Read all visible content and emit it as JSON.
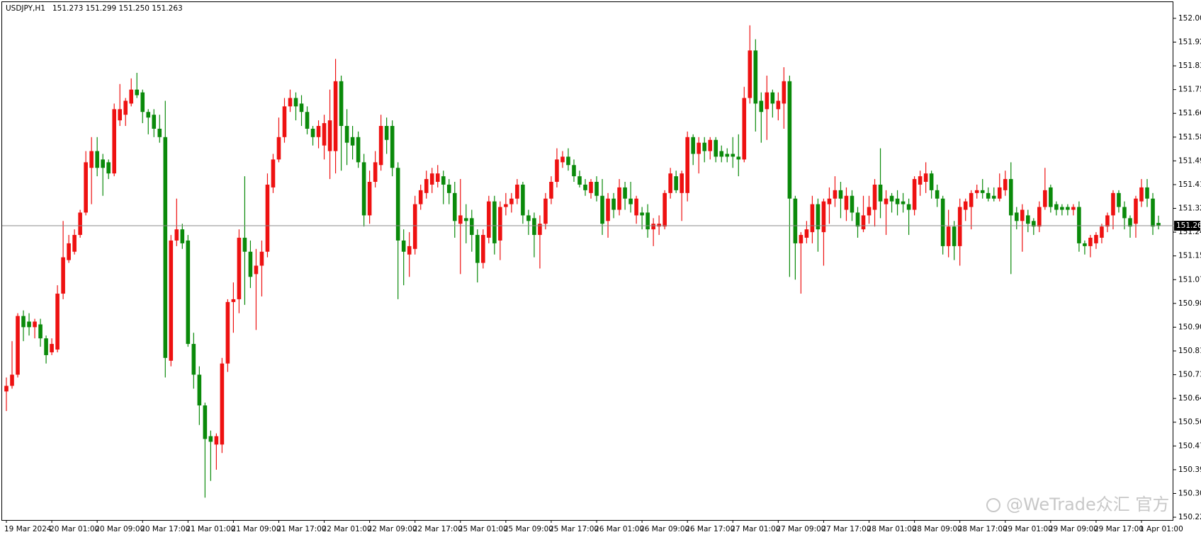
{
  "chart_data": {
    "type": "candlestick",
    "symbol": "USDJPY,H1",
    "header_ohlc": "151.273 151.299 151.250 151.263",
    "watermark": "@WeTrade众汇 官方",
    "up_color": "#ee1111",
    "down_color": "#0a8a0a",
    "ylim": [
      150.21,
      152.063
    ],
    "yticks": [
      {
        "value": 150.22,
        "label": "150.220"
      },
      150.305,
      {
        "value": 150.39,
        "label": "150.390"
      },
      150.475,
      {
        "value": 150.56,
        "label": "150.560"
      },
      150.645,
      {
        "value": 150.73,
        "label": "150.730"
      },
      150.815,
      {
        "value": 150.9,
        "label": "150.900"
      },
      150.985,
      {
        "value": 151.07,
        "label": "151.070"
      },
      151.155,
      {
        "value": 151.24,
        "label": "151.240"
      },
      151.325,
      {
        "value": 151.41,
        "label": "151.410"
      },
      151.495,
      {
        "value": 151.58,
        "label": "151.580"
      },
      151.665,
      {
        "value": 151.75,
        "label": "151.750"
      },
      151.835,
      {
        "value": 151.92,
        "label": "151.920"
      },
      152.005
    ],
    "xticks": [
      {
        "value": 0,
        "label": "19 Mar 2024"
      },
      {
        "value": 8,
        "label": "20 Mar 01:00"
      },
      {
        "value": 16,
        "label": "20 Mar 09:00"
      },
      {
        "value": 24,
        "label": "20 Mar 17:00"
      },
      {
        "value": 32,
        "label": "21 Mar 01:00"
      },
      {
        "value": 40,
        "label": "21 Mar 09:00"
      },
      {
        "value": 48,
        "label": "21 Mar 17:00"
      },
      {
        "value": 56,
        "label": "22 Mar 01:00"
      },
      {
        "value": 64,
        "label": "22 Mar 09:00"
      },
      {
        "value": 72,
        "label": "22 Mar 17:00"
      },
      {
        "value": 80,
        "label": "25 Mar 01:00"
      },
      {
        "value": 88,
        "label": "25 Mar 09:00"
      },
      {
        "value": 96,
        "label": "25 Mar 17:00"
      },
      {
        "value": 104,
        "label": "26 Mar 01:00"
      },
      {
        "value": 112,
        "label": "26 Mar 09:00"
      },
      {
        "value": 120,
        "label": "26 Mar 17:00"
      },
      {
        "value": 128,
        "label": "27 Mar 01:00"
      },
      {
        "value": 136,
        "label": "27 Mar 09:00"
      },
      {
        "value": 144,
        "label": "27 Mar 17:00"
      },
      {
        "value": 152,
        "label": "28 Mar 01:00"
      },
      {
        "value": 160,
        "label": "28 Mar 09:00"
      },
      {
        "value": 168,
        "label": "28 Mar 17:00"
      },
      {
        "value": 176,
        "label": "29 Mar 01:00"
      },
      {
        "value": 184,
        "label": "29 Mar 09:00"
      },
      {
        "value": 192,
        "label": "29 Mar 17:00"
      },
      {
        "value": 200,
        "label": "1 Apr 01:00"
      }
    ],
    "price_line": 151.263,
    "open": [
      150.67,
      150.69,
      150.73,
      150.94,
      150.92,
      150.9,
      150.91,
      150.86,
      150.81,
      150.82,
      151.02,
      151.14,
      151.17,
      151.23,
      151.31,
      151.47,
      151.53,
      151.5,
      151.49,
      151.45,
      151.64,
      151.66,
      151.7,
      151.75,
      151.74,
      151.67,
      151.66,
      151.61,
      151.58,
      150.78,
      151.21,
      151.25,
      151.21,
      150.84,
      150.73,
      150.62,
      150.51,
      150.48,
      150.48,
      150.77,
      150.99,
      151.0,
      151.22,
      151.17,
      151.09,
      151.12,
      151.17,
      151.4,
      151.5,
      151.58,
      151.69,
      151.72,
      151.7,
      151.67,
      151.61,
      151.58,
      151.55,
      151.53,
      151.53,
      151.78,
      151.62,
      151.58,
      151.58,
      151.49,
      151.3,
      151.42,
      151.48,
      151.62,
      151.62,
      151.47,
      151.21,
      151.16,
      151.18,
      151.34,
      151.38,
      151.41,
      151.42,
      151.44,
      151.41,
      151.38,
      151.27,
      151.29,
      151.29,
      151.23,
      151.13,
      151.22,
      151.35,
      151.21,
      151.33,
      151.34,
      151.36,
      151.41,
      151.3,
      151.29,
      151.23,
      151.27,
      151.36,
      151.42,
      151.49,
      151.51,
      151.48,
      151.44,
      151.41,
      151.38,
      151.42,
      151.37,
      151.28,
      151.36,
      151.32,
      151.4,
      151.36,
      151.3,
      151.31,
      151.31,
      151.25,
      151.26,
      151.26,
      151.38,
      151.44,
      151.38,
      151.38,
      151.58,
      151.52,
      151.56,
      151.53,
      151.57,
      151.53,
      151.52,
      151.52,
      151.51,
      151.5,
      151.72,
      151.89,
      151.71,
      151.68,
      151.74,
      151.68,
      151.7,
      151.78,
      151.36,
      151.2,
      151.22,
      151.24,
      151.34,
      151.24,
      151.34,
      151.36,
      151.39,
      151.32,
      151.37,
      151.31,
      151.25,
      151.3,
      151.32,
      151.41,
      151.34,
      151.37,
      151.36,
      151.35,
      151.34,
      151.32,
      151.41,
      151.42,
      151.45,
      151.39,
      151.36,
      151.19,
      151.26,
      151.19,
      151.32,
      151.33,
      151.38,
      151.39,
      151.38,
      151.37,
      151.36,
      151.39,
      151.43,
      151.31,
      151.28,
      151.3,
      151.28,
      151.26,
      151.33,
      151.4,
      151.34,
      151.33,
      151.33,
      151.32,
      151.33,
      151.2,
      151.19,
      151.2,
      151.22,
      151.26,
      151.3,
      151.38,
      151.33,
      151.29,
      151.27,
      151.35,
      151.4,
      151.36,
      151.273
    ],
    "high": [
      150.72,
      150.85,
      150.95,
      150.96,
      150.95,
      150.93,
      150.93,
      150.87,
      150.86,
      151.05,
      151.28,
      151.23,
      151.25,
      151.32,
      151.53,
      151.58,
      151.58,
      151.52,
      151.5,
      151.7,
      151.77,
      151.72,
      151.79,
      151.81,
      151.75,
      151.68,
      151.68,
      151.66,
      151.71,
      151.23,
      151.36,
      151.27,
      151.23,
      150.88,
      150.76,
      150.63,
      150.53,
      150.52,
      150.79,
      151.0,
      151.06,
      151.25,
      151.44,
      151.21,
      151.18,
      151.21,
      151.45,
      151.52,
      151.65,
      151.72,
      151.75,
      151.74,
      151.73,
      151.69,
      151.62,
      151.64,
      151.66,
      151.75,
      151.86,
      151.8,
      151.68,
      151.62,
      151.6,
      151.52,
      151.46,
      151.53,
      151.66,
      151.65,
      151.64,
      151.49,
      151.25,
      151.24,
      151.37,
      151.41,
      151.46,
      151.47,
      151.48,
      151.46,
      151.43,
      151.42,
      151.43,
      151.34,
      151.32,
      151.25,
      151.25,
      151.37,
      151.37,
      151.35,
      151.38,
      151.38,
      151.43,
      151.42,
      151.32,
      151.31,
      151.3,
      151.38,
      151.44,
      151.54,
      151.53,
      151.54,
      151.5,
      151.46,
      151.43,
      151.43,
      151.44,
      151.43,
      151.38,
      151.38,
      151.43,
      151.42,
      151.42,
      151.37,
      151.33,
      151.34,
      151.29,
      151.3,
      151.39,
      151.47,
      151.46,
      151.46,
      151.6,
      151.59,
      151.58,
      151.58,
      151.58,
      151.58,
      151.55,
      151.54,
      151.58,
      151.59,
      151.76,
      151.98,
      151.93,
      151.74,
      151.8,
      151.75,
      151.74,
      151.83,
      151.8,
      151.37,
      151.24,
      151.28,
      151.37,
      151.36,
      151.36,
      151.4,
      151.44,
      151.42,
      151.4,
      151.39,
      151.33,
      151.37,
      151.37,
      151.43,
      151.54,
      151.39,
      151.38,
      151.39,
      151.38,
      151.36,
      151.44,
      151.46,
      151.49,
      151.46,
      151.41,
      151.37,
      151.32,
      151.28,
      151.36,
      151.36,
      151.39,
      151.41,
      151.43,
      151.4,
      151.4,
      151.45,
      151.46,
      151.49,
      151.33,
      151.34,
      151.32,
      151.29,
      151.35,
      151.47,
      151.41,
      151.35,
      151.34,
      151.34,
      151.34,
      151.35,
      151.21,
      151.23,
      151.24,
      151.27,
      151.31,
      151.39,
      151.39,
      151.35,
      151.3,
      151.37,
      151.43,
      151.43,
      151.38,
      151.299
    ],
    "low": [
      150.6,
      150.68,
      150.72,
      150.85,
      150.87,
      150.86,
      150.83,
      150.77,
      150.8,
      150.81,
      151.0,
      151.13,
      151.16,
      151.22,
      151.3,
      151.34,
      151.44,
      151.37,
      151.43,
      151.44,
      151.62,
      151.62,
      151.69,
      151.72,
      151.63,
      151.59,
      151.58,
      151.56,
      150.72,
      150.76,
      151.19,
      151.18,
      150.83,
      150.68,
      150.55,
      150.29,
      150.35,
      150.39,
      150.45,
      150.74,
      150.88,
      150.95,
      150.98,
      151.04,
      150.89,
      151.01,
      151.15,
      151.38,
      151.49,
      151.56,
      151.67,
      151.64,
      151.62,
      151.59,
      151.55,
      151.54,
      151.5,
      151.43,
      151.45,
      151.46,
      151.48,
      151.5,
      151.47,
      151.26,
      151.27,
      151.4,
      151.46,
      151.52,
      151.44,
      151.0,
      151.05,
      151.08,
      151.16,
      151.32,
      151.36,
      151.38,
      151.4,
      151.34,
      151.34,
      151.22,
      151.09,
      151.2,
      151.17,
      151.06,
      151.11,
      151.2,
      151.16,
      151.14,
      151.3,
      151.31,
      151.34,
      151.27,
      151.23,
      151.15,
      151.11,
      151.25,
      151.34,
      151.4,
      151.47,
      151.46,
      151.42,
      151.4,
      151.37,
      151.36,
      151.35,
      151.23,
      151.22,
      151.29,
      151.3,
      151.32,
      151.31,
      151.27,
      151.25,
      151.22,
      151.19,
      151.23,
      151.25,
      151.36,
      151.38,
      151.28,
      151.35,
      151.48,
      151.45,
      151.49,
      151.5,
      151.49,
      151.49,
      151.49,
      151.47,
      151.44,
      151.49,
      151.7,
      151.6,
      151.56,
      151.57,
      151.65,
      151.64,
      151.61,
      151.08,
      151.07,
      151.02,
      151.2,
      151.2,
      151.17,
      151.12,
      151.27,
      151.33,
      151.29,
      151.28,
      151.28,
      151.22,
      151.24,
      151.27,
      151.26,
      151.29,
      151.23,
      151.31,
      151.3,
      151.31,
      151.23,
      151.3,
      151.37,
      151.38,
      151.36,
      151.33,
      151.16,
      151.15,
      151.14,
      151.12,
      151.28,
      151.25,
      151.36,
      151.36,
      151.35,
      151.35,
      151.35,
      151.37,
      151.09,
      151.25,
      151.17,
      151.24,
      151.23,
      151.24,
      151.32,
      151.31,
      151.3,
      151.3,
      151.3,
      151.3,
      151.17,
      151.16,
      151.15,
      151.18,
      151.2,
      151.24,
      151.25,
      151.31,
      151.25,
      151.22,
      151.22,
      151.33,
      151.33,
      151.23,
      151.25
    ],
    "close": [
      150.69,
      150.73,
      150.94,
      150.9,
      150.9,
      150.92,
      150.86,
      150.8,
      150.84,
      151.02,
      151.15,
      151.2,
      151.23,
      151.31,
      151.49,
      151.53,
      151.47,
      151.47,
      151.45,
      151.68,
      151.68,
      151.71,
      151.75,
      151.73,
      151.67,
      151.65,
      151.61,
      151.58,
      150.79,
      151.21,
      151.25,
      151.2,
      150.84,
      150.73,
      150.62,
      150.5,
      150.49,
      150.51,
      150.77,
      150.99,
      151.0,
      151.22,
      151.17,
      151.08,
      151.12,
      151.17,
      151.41,
      151.5,
      151.58,
      151.69,
      151.72,
      151.69,
      151.67,
      151.61,
      151.58,
      151.62,
      151.63,
      151.64,
      151.78,
      151.62,
      151.56,
      151.55,
      151.49,
      151.3,
      151.42,
      151.49,
      151.62,
      151.57,
      151.47,
      151.21,
      151.17,
      151.19,
      151.34,
      151.39,
      151.43,
      151.45,
      151.45,
      151.41,
      151.38,
      151.28,
      151.3,
      151.28,
      151.23,
      151.13,
      151.23,
      151.35,
      151.2,
      151.33,
      151.34,
      151.36,
      151.41,
      151.3,
      151.28,
      151.23,
      151.27,
      151.36,
      151.42,
      151.5,
      151.51,
      151.48,
      151.44,
      151.41,
      151.39,
      151.42,
      151.37,
      151.27,
      151.36,
      151.32,
      151.4,
      151.36,
      151.34,
      151.36,
      151.3,
      151.25,
      151.27,
      151.27,
      151.38,
      151.45,
      151.39,
      151.45,
      151.58,
      151.52,
      151.56,
      151.53,
      151.57,
      151.51,
      151.51,
      151.51,
      151.51,
      151.5,
      151.72,
      151.89,
      151.7,
      151.67,
      151.74,
      151.7,
      151.71,
      151.78,
      151.36,
      151.2,
      151.23,
      151.25,
      151.34,
      151.25,
      151.35,
      151.36,
      151.39,
      151.36,
      151.37,
      151.31,
      151.26,
      151.3,
      151.33,
      151.41,
      151.35,
      151.36,
      151.35,
      151.34,
      151.34,
      151.32,
      151.43,
      151.44,
      151.45,
      151.39,
      151.36,
      151.19,
      151.26,
      151.19,
      151.33,
      151.35,
      151.38,
      151.39,
      151.38,
      151.36,
      151.36,
      151.4,
      151.43,
      151.3,
      151.28,
      151.32,
      151.27,
      151.26,
      151.33,
      151.39,
      151.33,
      151.32,
      151.32,
      151.32,
      151.33,
      151.2,
      151.19,
      151.22,
      151.23,
      151.26,
      151.3,
      151.38,
      151.33,
      151.29,
      151.26,
      151.36,
      151.4,
      151.36,
      151.26,
      151.263
    ]
  }
}
